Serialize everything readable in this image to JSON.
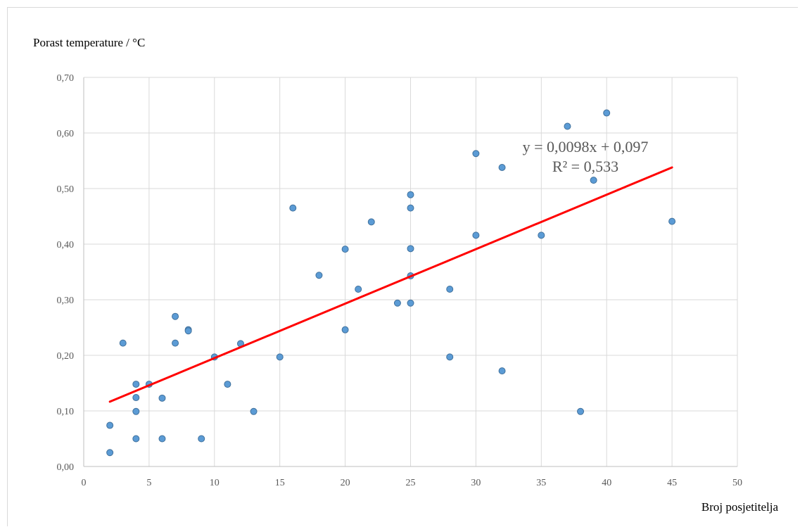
{
  "chart_data": {
    "type": "scatter",
    "ylabel": "Porast temperature / °C",
    "xlabel": "Broj posjetitelja",
    "xlim": [
      0,
      50
    ],
    "ylim": [
      0,
      0.7
    ],
    "x_ticks": [
      0,
      5,
      10,
      15,
      20,
      25,
      30,
      35,
      40,
      45,
      50
    ],
    "y_ticks": [
      "0,00",
      "0,10",
      "0,20",
      "0,30",
      "0,40",
      "0,50",
      "0,60",
      "0,70"
    ],
    "grid": true,
    "points": [
      [
        2,
        0.025
      ],
      [
        2,
        0.074
      ],
      [
        3,
        0.222
      ],
      [
        4,
        0.148
      ],
      [
        4,
        0.124
      ],
      [
        4,
        0.099
      ],
      [
        4,
        0.05
      ],
      [
        5,
        0.148
      ],
      [
        6,
        0.123
      ],
      [
        6,
        0.05
      ],
      [
        7,
        0.27
      ],
      [
        7,
        0.222
      ],
      [
        8,
        0.246
      ],
      [
        8,
        0.244
      ],
      [
        9,
        0.05
      ],
      [
        10,
        0.197
      ],
      [
        11,
        0.148
      ],
      [
        12,
        0.221
      ],
      [
        13,
        0.099
      ],
      [
        15,
        0.197
      ],
      [
        16,
        0.465
      ],
      [
        18,
        0.344
      ],
      [
        20,
        0.391
      ],
      [
        20,
        0.246
      ],
      [
        21,
        0.319
      ],
      [
        22,
        0.44
      ],
      [
        24,
        0.294
      ],
      [
        25,
        0.489
      ],
      [
        25,
        0.465
      ],
      [
        25,
        0.392
      ],
      [
        25,
        0.343
      ],
      [
        25,
        0.294
      ],
      [
        28,
        0.319
      ],
      [
        28,
        0.197
      ],
      [
        30,
        0.563
      ],
      [
        30,
        0.416
      ],
      [
        32,
        0.538
      ],
      [
        32,
        0.172
      ],
      [
        35,
        0.416
      ],
      [
        37,
        0.612
      ],
      [
        38,
        0.099
      ],
      [
        39,
        0.515
      ],
      [
        40,
        0.636
      ],
      [
        45,
        0.441
      ]
    ],
    "trendline": {
      "slope": 0.0098,
      "intercept": 0.097,
      "x_start": 2,
      "x_end": 45
    },
    "equation": "y = 0,0098x + 0,097",
    "r_squared": "R² = 0,533",
    "colors": {
      "marker": "#5b9bd5",
      "marker_edge": "#41719c",
      "trendline": "#ff0000",
      "grid": "#d9d9d9"
    }
  }
}
